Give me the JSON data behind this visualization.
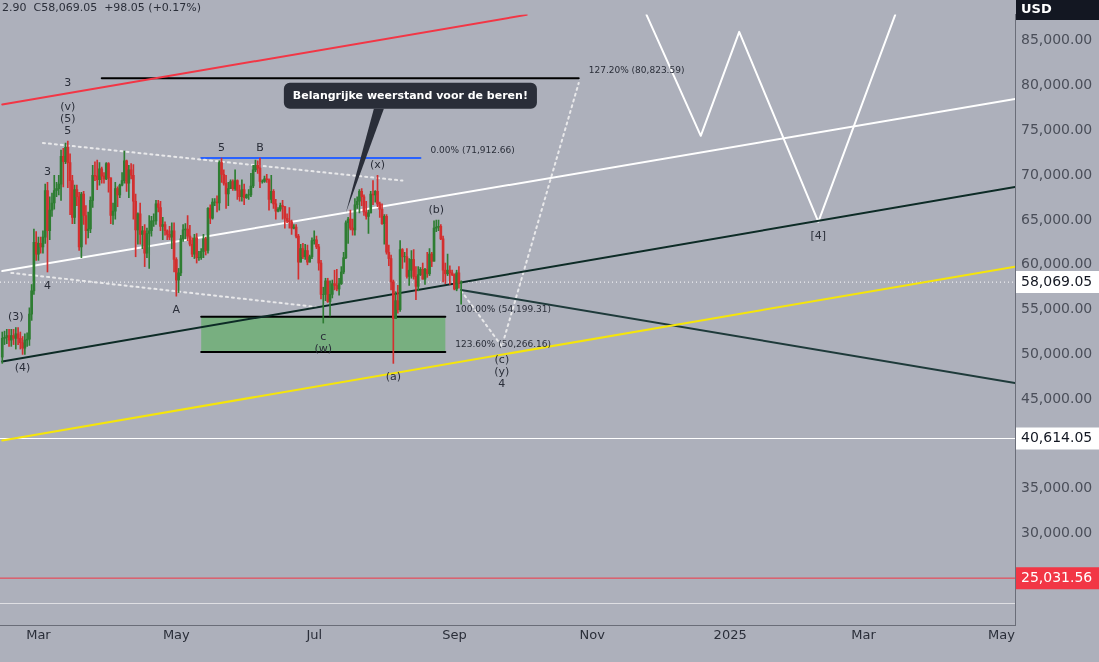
{
  "chart_data": {
    "type": "candlestick",
    "ylabel": "USD",
    "x": [
      "2024-02-14",
      "2024-02-15",
      "2024-02-16",
      "2024-02-17",
      "2024-02-18",
      "2024-02-19",
      "2024-02-20",
      "2024-02-21",
      "2024-02-22",
      "2024-02-23",
      "2024-02-24",
      "2024-02-25",
      "2024-02-26",
      "2024-02-27",
      "2024-02-28",
      "2024-02-29",
      "2024-03-01",
      "2024-03-02",
      "2024-03-03",
      "2024-03-04",
      "2024-03-05",
      "2024-03-06",
      "2024-03-07",
      "2024-03-08",
      "2024-03-09",
      "2024-03-10",
      "2024-03-11",
      "2024-03-12",
      "2024-03-13",
      "2024-03-14",
      "2024-03-15",
      "2024-03-16",
      "2024-03-17",
      "2024-03-18",
      "2024-03-19",
      "2024-03-20",
      "2024-03-21",
      "2024-03-22",
      "2024-03-23",
      "2024-03-24",
      "2024-03-25",
      "2024-03-26",
      "2024-03-27",
      "2024-03-28",
      "2024-03-29",
      "2024-03-30",
      "2024-03-31",
      "2024-04-01",
      "2024-04-02",
      "2024-04-03",
      "2024-04-04",
      "2024-04-05",
      "2024-04-06",
      "2024-04-07",
      "2024-04-08",
      "2024-04-09",
      "2024-04-10",
      "2024-04-11",
      "2024-04-12",
      "2024-04-13",
      "2024-04-14",
      "2024-04-15",
      "2024-04-16",
      "2024-04-17",
      "2024-04-18",
      "2024-04-19",
      "2024-04-20",
      "2024-04-21",
      "2024-04-22",
      "2024-04-23",
      "2024-04-24",
      "2024-04-25",
      "2024-04-26",
      "2024-04-27",
      "2024-04-28",
      "2024-04-29",
      "2024-04-30",
      "2024-05-01",
      "2024-05-02",
      "2024-05-03",
      "2024-05-04",
      "2024-05-05",
      "2024-05-06",
      "2024-05-07",
      "2024-05-08",
      "2024-05-09",
      "2024-05-10",
      "2024-05-11",
      "2024-05-12",
      "2024-05-13",
      "2024-05-14",
      "2024-05-15",
      "2024-05-16",
      "2024-05-17",
      "2024-05-18",
      "2024-05-19",
      "2024-05-20",
      "2024-05-21",
      "2024-05-22",
      "2024-05-23",
      "2024-05-24",
      "2024-05-25",
      "2024-05-26",
      "2024-05-27",
      "2024-05-28",
      "2024-05-29",
      "2024-05-30",
      "2024-05-31",
      "2024-06-01",
      "2024-06-02",
      "2024-06-03",
      "2024-06-04",
      "2024-06-05",
      "2024-06-06",
      "2024-06-07",
      "2024-06-08",
      "2024-06-09",
      "2024-06-10",
      "2024-06-11",
      "2024-06-12",
      "2024-06-13",
      "2024-06-14",
      "2024-06-15",
      "2024-06-16",
      "2024-06-17",
      "2024-06-18",
      "2024-06-19",
      "2024-06-20",
      "2024-06-21",
      "2024-06-22",
      "2024-06-23",
      "2024-06-24",
      "2024-06-25",
      "2024-06-26",
      "2024-06-27",
      "2024-06-28",
      "2024-06-29",
      "2024-06-30",
      "2024-07-01",
      "2024-07-02",
      "2024-07-03",
      "2024-07-04",
      "2024-07-05",
      "2024-07-06",
      "2024-07-07",
      "2024-07-08",
      "2024-07-09",
      "2024-07-10",
      "2024-07-11",
      "2024-07-12",
      "2024-07-13",
      "2024-07-14",
      "2024-07-15",
      "2024-07-16",
      "2024-07-17",
      "2024-07-18",
      "2024-07-19",
      "2024-07-20",
      "2024-07-21",
      "2024-07-22",
      "2024-07-23",
      "2024-07-24",
      "2024-07-25",
      "2024-07-26",
      "2024-07-27",
      "2024-07-28",
      "2024-07-29",
      "2024-07-30",
      "2024-07-31",
      "2024-08-01",
      "2024-08-02",
      "2024-08-03",
      "2024-08-04",
      "2024-08-05",
      "2024-08-06",
      "2024-08-07",
      "2024-08-08",
      "2024-08-09",
      "2024-08-10",
      "2024-08-11",
      "2024-08-12",
      "2024-08-13",
      "2024-08-14",
      "2024-08-15",
      "2024-08-16",
      "2024-08-17",
      "2024-08-18",
      "2024-08-19",
      "2024-08-20",
      "2024-08-21",
      "2024-08-22",
      "2024-08-23",
      "2024-08-24",
      "2024-08-25",
      "2024-08-26",
      "2024-08-27",
      "2024-08-28",
      "2024-08-29",
      "2024-08-30",
      "2024-08-31",
      "2024-09-01",
      "2024-09-02",
      "2024-09-03",
      "2024-09-04"
    ],
    "ohlc": [
      [
        49700,
        52500,
        49000,
        51800
      ],
      [
        51800,
        52600,
        51100,
        51900
      ],
      [
        51900,
        52800,
        51200,
        52100
      ],
      [
        52100,
        52800,
        50900,
        51600
      ],
      [
        51600,
        52800,
        50900,
        52100
      ],
      [
        52100,
        52800,
        51100,
        51800
      ],
      [
        51800,
        53000,
        50600,
        52300
      ],
      [
        52300,
        53000,
        51100,
        51800
      ],
      [
        51800,
        52500,
        50600,
        51300
      ],
      [
        51300,
        52000,
        50000,
        50700
      ],
      [
        50700,
        52300,
        50000,
        51600
      ],
      [
        51600,
        52400,
        50900,
        51700
      ],
      [
        51700,
        55200,
        51000,
        54500
      ],
      [
        54500,
        57800,
        53800,
        57100
      ],
      [
        57100,
        64000,
        56700,
        62500
      ],
      [
        62500,
        63700,
        60500,
        61200
      ],
      [
        61200,
        63100,
        60500,
        62400
      ],
      [
        62400,
        63100,
        61300,
        62000
      ],
      [
        62000,
        63800,
        61300,
        63100
      ],
      [
        63100,
        69000,
        62400,
        68300
      ],
      [
        68300,
        69200,
        59200,
        63800
      ],
      [
        63800,
        67600,
        62800,
        66100
      ],
      [
        66100,
        68000,
        65400,
        66900
      ],
      [
        66900,
        70000,
        66200,
        68300
      ],
      [
        68300,
        69200,
        67600,
        68500
      ],
      [
        68500,
        70000,
        67800,
        69000
      ],
      [
        69000,
        72800,
        67200,
        72100
      ],
      [
        72100,
        73000,
        68700,
        71500
      ],
      [
        71500,
        73600,
        71300,
        73100
      ],
      [
        73100,
        73800,
        68600,
        71400
      ],
      [
        71400,
        72400,
        65600,
        69400
      ],
      [
        69400,
        70000,
        64600,
        65300
      ],
      [
        65300,
        68900,
        64600,
        68400
      ],
      [
        68400,
        68900,
        66600,
        67600
      ],
      [
        67600,
        68100,
        61600,
        62000
      ],
      [
        62000,
        68100,
        60800,
        67900
      ],
      [
        67900,
        68200,
        64500,
        65500
      ],
      [
        65500,
        66600,
        62300,
        63800
      ],
      [
        63800,
        65900,
        63000,
        64000
      ],
      [
        64000,
        67600,
        63600,
        67200
      ],
      [
        67200,
        71100,
        66400,
        70000
      ],
      [
        70000,
        71500,
        69400,
        69900
      ],
      [
        69900,
        71700,
        68400,
        69500
      ],
      [
        69500,
        71400,
        68900,
        70700
      ],
      [
        70700,
        70900,
        69100,
        69900
      ],
      [
        69900,
        70300,
        69100,
        69600
      ],
      [
        69600,
        71400,
        69500,
        71300
      ],
      [
        71300,
        71400,
        68100,
        69700
      ],
      [
        69700,
        69700,
        64600,
        65500
      ],
      [
        65500,
        66900,
        64500,
        66000
      ],
      [
        66000,
        69200,
        65100,
        68500
      ],
      [
        68500,
        68700,
        66500,
        67800
      ],
      [
        67800,
        69000,
        67500,
        68900
      ],
      [
        68900,
        70300,
        68800,
        69400
      ],
      [
        69400,
        72700,
        69100,
        71600
      ],
      [
        71600,
        71700,
        68200,
        69100
      ],
      [
        69100,
        71100,
        67500,
        70600
      ],
      [
        70600,
        71300,
        69600,
        70000
      ],
      [
        70000,
        71200,
        65100,
        67100
      ],
      [
        67100,
        67900,
        60900,
        63900
      ],
      [
        63900,
        65800,
        62300,
        65700
      ],
      [
        65700,
        66900,
        62300,
        63400
      ],
      [
        63400,
        64300,
        61800,
        63800
      ],
      [
        63800,
        64500,
        59800,
        61300
      ],
      [
        61300,
        64100,
        60800,
        63500
      ],
      [
        63500,
        65500,
        59600,
        63800
      ],
      [
        63800,
        65400,
        63200,
        64900
      ],
      [
        64900,
        65700,
        64300,
        64900
      ],
      [
        64900,
        67200,
        64500,
        66800
      ],
      [
        66800,
        67200,
        65900,
        66400
      ],
      [
        66400,
        67100,
        63800,
        64300
      ],
      [
        64300,
        65300,
        62800,
        64500
      ],
      [
        64500,
        64800,
        63300,
        63800
      ],
      [
        63800,
        63900,
        62800,
        63400
      ],
      [
        63400,
        64300,
        62800,
        63100
      ],
      [
        63100,
        64700,
        61800,
        63800
      ],
      [
        63800,
        64700,
        59200,
        60600
      ],
      [
        60600,
        60800,
        56500,
        58300
      ],
      [
        58300,
        59600,
        56900,
        59100
      ],
      [
        59100,
        63300,
        58800,
        62900
      ],
      [
        62900,
        64500,
        62600,
        63900
      ],
      [
        63900,
        64600,
        62900,
        64000
      ],
      [
        64000,
        65500,
        62700,
        63200
      ],
      [
        63200,
        64400,
        62100,
        62300
      ],
      [
        62300,
        63000,
        60900,
        61200
      ],
      [
        61200,
        63400,
        60700,
        63000
      ],
      [
        63000,
        63500,
        60200,
        60800
      ],
      [
        60800,
        61500,
        60500,
        60800
      ],
      [
        60800,
        61800,
        60600,
        61500
      ],
      [
        61500,
        63400,
        60800,
        62900
      ],
      [
        62900,
        63100,
        61100,
        61600
      ],
      [
        61600,
        66400,
        61300,
        66300
      ],
      [
        66300,
        66700,
        64600,
        65200
      ],
      [
        65200,
        67400,
        65100,
        67000
      ],
      [
        67000,
        67400,
        66600,
        67000
      ],
      [
        67000,
        67700,
        65900,
        66900
      ],
      [
        66900,
        71600,
        66100,
        71400
      ],
      [
        71400,
        71900,
        69200,
        70100
      ],
      [
        70100,
        70600,
        68900,
        69100
      ],
      [
        69100,
        70000,
        66300,
        67900
      ],
      [
        67900,
        69200,
        66600,
        68500
      ],
      [
        68500,
        69500,
        68500,
        69300
      ],
      [
        69300,
        69500,
        68300,
        68500
      ],
      [
        68500,
        70600,
        68300,
        69400
      ],
      [
        69400,
        69500,
        67300,
        68300
      ],
      [
        68300,
        68900,
        67100,
        67600
      ],
      [
        67600,
        69500,
        67100,
        68400
      ],
      [
        68400,
        69000,
        66700,
        67500
      ],
      [
        67500,
        67900,
        67400,
        67800
      ],
      [
        67800,
        68400,
        67300,
        67800
      ],
      [
        67800,
        70200,
        67600,
        68800
      ],
      [
        68800,
        71100,
        68600,
        70600
      ],
      [
        70600,
        71700,
        70400,
        71100
      ],
      [
        71100,
        71600,
        70200,
        70800
      ],
      [
        70800,
        71900,
        68600,
        69300
      ],
      [
        69300,
        69500,
        69100,
        69300
      ],
      [
        69300,
        69900,
        69200,
        69600
      ],
      [
        69600,
        70100,
        69200,
        69500
      ],
      [
        69500,
        69600,
        66100,
        67300
      ],
      [
        67300,
        70000,
        66900,
        68200
      ],
      [
        68200,
        68400,
        66300,
        66800
      ],
      [
        66800,
        67300,
        65100,
        66000
      ],
      [
        66000,
        66400,
        65900,
        66200
      ],
      [
        66200,
        66900,
        66000,
        66600
      ],
      [
        66600,
        67200,
        65100,
        66500
      ],
      [
        66500,
        66500,
        64100,
        65200
      ],
      [
        65200,
        65700,
        64700,
        64900
      ],
      [
        64900,
        66400,
        64100,
        64800
      ],
      [
        64800,
        65000,
        63400,
        64100
      ],
      [
        64100,
        64500,
        64000,
        64200
      ],
      [
        64200,
        64500,
        63000,
        63200
      ],
      [
        63200,
        63400,
        58400,
        60300
      ],
      [
        60300,
        62300,
        60300,
        61800
      ],
      [
        61800,
        62400,
        60700,
        60900
      ],
      [
        60900,
        62300,
        60600,
        61600
      ],
      [
        61600,
        62200,
        60000,
        60300
      ],
      [
        60300,
        61100,
        60300,
        60900
      ],
      [
        60900,
        63000,
        60700,
        62700
      ],
      [
        62700,
        63800,
        62300,
        62800
      ],
      [
        62800,
        63200,
        61800,
        62000
      ],
      [
        62000,
        62300,
        59400,
        60200
      ],
      [
        60200,
        60500,
        56200,
        56700
      ],
      [
        56700,
        57500,
        53500,
        56700
      ],
      [
        56700,
        58500,
        56000,
        58200
      ],
      [
        58200,
        58500,
        55800,
        55900
      ],
      [
        55900,
        58200,
        54300,
        56700
      ],
      [
        56700,
        58300,
        56300,
        57900
      ],
      [
        57900,
        59400,
        57200,
        57700
      ],
      [
        57700,
        59500,
        57100,
        57300
      ],
      [
        57300,
        58500,
        56600,
        57900
      ],
      [
        57900,
        59800,
        57800,
        59200
      ],
      [
        59200,
        61400,
        59000,
        60800
      ],
      [
        60800,
        64900,
        60700,
        64700
      ],
      [
        64700,
        65300,
        62400,
        65100
      ],
      [
        65100,
        66100,
        63900,
        64100
      ],
      [
        64100,
        65100,
        63300,
        63900
      ],
      [
        63900,
        67400,
        63300,
        66700
      ],
      [
        66700,
        67600,
        66300,
        67100
      ],
      [
        67100,
        68400,
        65800,
        68200
      ],
      [
        68200,
        68500,
        66600,
        67600
      ],
      [
        67600,
        67800,
        65500,
        65900
      ],
      [
        65900,
        67100,
        65100,
        65400
      ],
      [
        65400,
        66100,
        63500,
        65800
      ],
      [
        65800,
        68200,
        65800,
        67900
      ],
      [
        67900,
        69400,
        66700,
        67800
      ],
      [
        67800,
        68300,
        67000,
        68200
      ],
      [
        68200,
        70000,
        66500,
        66800
      ],
      [
        66800,
        67000,
        65300,
        66200
      ],
      [
        66200,
        66800,
        64500,
        64600
      ],
      [
        64600,
        65600,
        62300,
        65400
      ],
      [
        65400,
        65600,
        61200,
        61400
      ],
      [
        61400,
        62200,
        59900,
        60700
      ],
      [
        60700,
        61100,
        57200,
        58100
      ],
      [
        58100,
        58300,
        49000,
        54000
      ],
      [
        54000,
        57000,
        54000,
        56000
      ],
      [
        56000,
        57700,
        54600,
        55000
      ],
      [
        55000,
        62700,
        54800,
        61700
      ],
      [
        61700,
        61800,
        59600,
        60900
      ],
      [
        60900,
        61400,
        60300,
        60900
      ],
      [
        60900,
        61800,
        58500,
        58700
      ],
      [
        58700,
        60700,
        57700,
        59400
      ],
      [
        59400,
        61600,
        58500,
        60600
      ],
      [
        60600,
        61700,
        58400,
        58700
      ],
      [
        58700,
        59800,
        56100,
        57600
      ],
      [
        57600,
        59800,
        57100,
        58900
      ],
      [
        58900,
        59700,
        58800,
        59500
      ],
      [
        59500,
        60200,
        58400,
        58400
      ],
      [
        58400,
        59600,
        57800,
        59500
      ],
      [
        59500,
        61400,
        58600,
        59000
      ],
      [
        59000,
        61800,
        58800,
        61200
      ],
      [
        61200,
        61400,
        59800,
        60400
      ],
      [
        60400,
        64900,
        60400,
        64100
      ],
      [
        64100,
        65000,
        63700,
        64200
      ],
      [
        64200,
        65000,
        63800,
        64300
      ],
      [
        64300,
        64500,
        62800,
        62900
      ],
      [
        62900,
        63200,
        58100,
        59400
      ],
      [
        59400,
        60200,
        57900,
        59000
      ],
      [
        59000,
        61200,
        58800,
        59400
      ],
      [
        59400,
        59900,
        57800,
        59100
      ],
      [
        59100,
        59400,
        58800,
        58900
      ],
      [
        58900,
        59000,
        57200,
        57300
      ],
      [
        57300,
        59400,
        57100,
        59100
      ],
      [
        59100,
        59800,
        57400,
        57970
      ],
      [
        57970,
        58200,
        55600,
        58069.05
      ]
    ],
    "series": [
      {
        "type": "line",
        "color": "#f23645",
        "x": [
          "2024-02-14",
          "2024-10-03"
        ],
        "values": [
          77900,
          87900
        ]
      },
      {
        "type": "line",
        "color": "#ffffff",
        "x": [
          "2024-02-14",
          "2025-05-07"
        ],
        "values": [
          59300,
          78500
        ]
      },
      {
        "type": "line",
        "color": "#0d2b26",
        "x": [
          "2024-02-14",
          "2025-05-07"
        ],
        "values": [
          49200,
          68700
        ]
      },
      {
        "type": "line",
        "color": "#f5e50a",
        "x": [
          "2024-02-14",
          "2025-05-07"
        ],
        "values": [
          40400,
          59800
        ]
      },
      {
        "type": "line",
        "color": "#1e3a3a",
        "x": [
          "2024-09-04",
          "2025-05-07"
        ],
        "values": [
          57200,
          46800
        ]
      },
      {
        "type": "line",
        "color": "#ffffff",
        "x": [
          "2024-11-25",
          "2024-12-19",
          "2025-01-05",
          "2025-02-09",
          "2025-03-15"
        ],
        "values": [
          87900,
          74400,
          86000,
          64800,
          87900
        ]
      },
      {
        "type": "line",
        "color": "#e8e8ea",
        "line_style": "dashed",
        "x": [
          "2024-09-04",
          "2024-09-22",
          "2024-10-26"
        ],
        "values": [
          57100,
          50900,
          80300
        ]
      },
      {
        "type": "line",
        "color": "#e8e8ea",
        "line_style": "dashed",
        "x": [
          "2024-03-03",
          "2024-08-09"
        ],
        "values": [
          73600,
          69400
        ]
      },
      {
        "type": "line",
        "color": "#e8e8ea",
        "line_style": "dashed",
        "x": [
          "2024-02-18",
          "2024-07-02"
        ],
        "values": [
          59100,
          55300
        ]
      },
      {
        "type": "line",
        "color": "#000000",
        "x": [
          "2024-03-29",
          "2024-10-26"
        ],
        "values": [
          80823.59,
          80823.59
        ]
      },
      {
        "type": "line",
        "color": "#2962ff",
        "x": [
          "2024-05-12",
          "2024-08-17"
        ],
        "values": [
          71912.66,
          71912.66
        ]
      },
      {
        "type": "line",
        "color": "#000000",
        "x": [
          "2024-05-12",
          "2024-08-28"
        ],
        "values": [
          54199.31,
          54199.31
        ],
        "lower": [
          50266.16,
          50266.16
        ],
        "upper": [
          54199.31,
          54199.31
        ]
      },
      {
        "type": "line",
        "color": "#000000",
        "x": [
          "2024-05-12",
          "2024-08-28"
        ],
        "values": [
          50266.16,
          50266.16
        ]
      }
    ],
    "ref_lines": [
      {
        "axis": "y",
        "value": 58069.05,
        "label": "58,069.05",
        "color": "#ffffff",
        "line_style": "dotted"
      },
      {
        "axis": "y",
        "value": 40614.05,
        "label": "40,614.05",
        "color": "#ffffff"
      },
      {
        "axis": "y",
        "value": 25031.56,
        "label": "25,031.56",
        "color": "#f23645"
      },
      {
        "axis": "y",
        "value": 22200,
        "label": null,
        "color": "#e0e0e4"
      }
    ],
    "annotations": [
      "2.90  C58,069.05  +98.05 (+0.17%)",
      {
        "text": "Belangrijke weerstand voor de beren!",
        "x": "2024-07-15",
        "y": 65800
      },
      {
        "text": "127.20% (80,823.59)",
        "x": "2024-10-26",
        "y": 80823.59
      },
      {
        "text": "0.00% (71,912.66)",
        "x": "2024-08-17",
        "y": 71912.66
      },
      {
        "text": "100.00% (54,199.31)",
        "x": "2024-08-28",
        "y": 54199.31
      },
      {
        "text": "123.60% (50,266.16)",
        "x": "2024-08-28",
        "y": 50266.16
      },
      {
        "text": "3",
        "x": "2024-03-05",
        "y": 69200
      },
      {
        "text": "3",
        "x": "2024-03-14",
        "y": 79150
      },
      {
        "text": "(v)",
        "x": "2024-03-14",
        "y": 73800
      },
      {
        "text": "(5)",
        "x": "2024-03-14",
        "y": 73800
      },
      {
        "text": "5",
        "x": "2024-03-14",
        "y": 73800
      },
      {
        "text": "4",
        "x": "2024-03-05",
        "y": 59200
      },
      {
        "text": "(3)",
        "x": "2024-02-20",
        "y": 53000
      },
      {
        "text": "(4)",
        "x": "2024-02-23",
        "y": 50000
      },
      {
        "text": "A",
        "x": "2024-05-01",
        "y": 56500
      },
      {
        "text": "B",
        "x": "2024-06-07",
        "y": 71900
      },
      {
        "text": "5",
        "x": "2024-05-21",
        "y": 71900
      },
      {
        "text": "c",
        "x": "2024-07-05",
        "y": 53500
      },
      {
        "text": "(w)",
        "x": "2024-07-05",
        "y": 53500
      },
      {
        "text": "(x)",
        "x": "2024-07-29",
        "y": 70000
      },
      {
        "text": "(b)",
        "x": "2024-08-24",
        "y": 65000
      },
      {
        "text": "(a)",
        "x": "2024-08-05",
        "y": 49000
      },
      {
        "text": "(c)",
        "x": "2024-09-22",
        "y": 50900
      },
      {
        "text": "(y)",
        "x": "2024-09-22",
        "y": 50900
      },
      {
        "text": "4",
        "x": "2024-09-22",
        "y": 50900
      },
      {
        "text": "[4]",
        "x": "2025-02-09",
        "y": 64800
      }
    ],
    "xlim": [
      "2024-02-13",
      "2025-05-07"
    ],
    "xticks": [
      {
        "value": "2024-03",
        "label": "Mar"
      },
      {
        "value": "2024-05",
        "label": "May"
      },
      {
        "value": "2024-07",
        "label": "Jul"
      },
      {
        "value": "2024-09",
        "label": "Sep"
      },
      {
        "value": "2024-11",
        "label": "Nov"
      },
      {
        "value": "2025-01",
        "label": "2025"
      },
      {
        "value": "2025-03",
        "label": "Mar"
      },
      {
        "value": "2025-05",
        "label": "May"
      }
    ],
    "ylim": [
      19800,
      87950
    ],
    "yticks": [
      {
        "value": 30000,
        "label": "30,000.00"
      },
      {
        "value": 35000,
        "label": "35,000.00"
      },
      {
        "value": 45000,
        "label": "45,000.00"
      },
      {
        "value": 50000,
        "label": "50,000.00"
      },
      {
        "value": 55000,
        "label": "55,000.00"
      },
      {
        "value": 60000,
        "label": "60,000.00"
      },
      {
        "value": 65000,
        "label": "65,000.00"
      },
      {
        "value": 70000,
        "label": "70,000.00"
      },
      {
        "value": 75000,
        "label": "75,000.00"
      },
      {
        "value": 80000,
        "label": "80,000.00"
      },
      {
        "value": 85000,
        "label": "85,000.00"
      }
    ],
    "grid": false,
    "legend": false
  }
}
